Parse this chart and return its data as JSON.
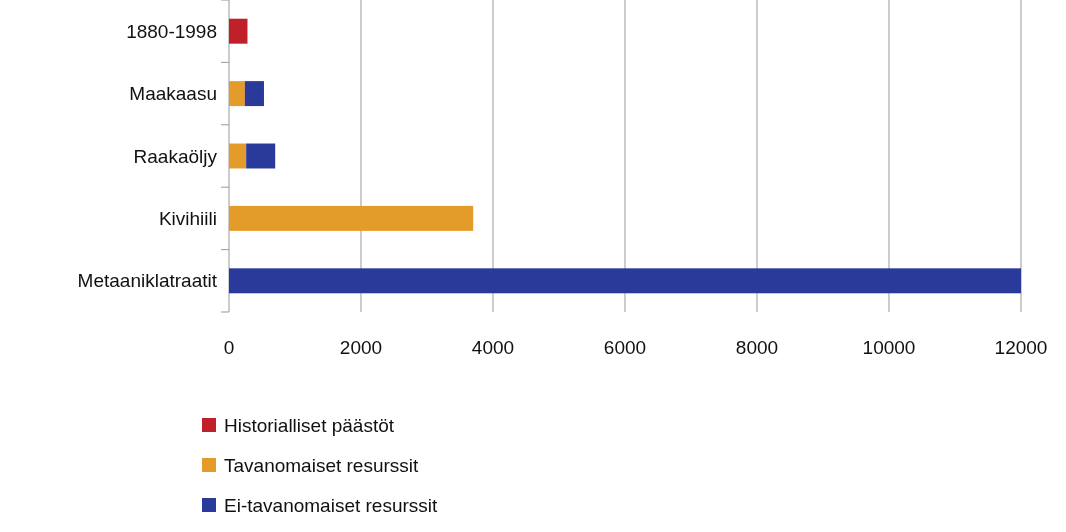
{
  "chart_data": {
    "type": "bar",
    "orientation": "horizontal",
    "stacked": true,
    "categories": [
      "1880-1998",
      "Maakaasu",
      "Raakaöljy",
      "Kivihiili",
      "Metaaniklatraatit"
    ],
    "series": [
      {
        "name": "Historialliset päästöt",
        "color": "#c0202a",
        "values": [
          280,
          null,
          null,
          null,
          null
        ]
      },
      {
        "name": "Tavanomaiset resurssit",
        "color": "#e39b2a",
        "values": [
          null,
          240,
          260,
          3700,
          null
        ]
      },
      {
        "name": "Ei-tavanomaiset resurssit",
        "color": "#2a3a9a",
        "values": [
          null,
          290,
          440,
          null,
          12000
        ]
      }
    ],
    "xlim": [
      0,
      12000
    ],
    "xticks": [
      0,
      2000,
      4000,
      6000,
      8000,
      10000,
      12000
    ],
    "grid": "x",
    "legend": "bottom"
  }
}
